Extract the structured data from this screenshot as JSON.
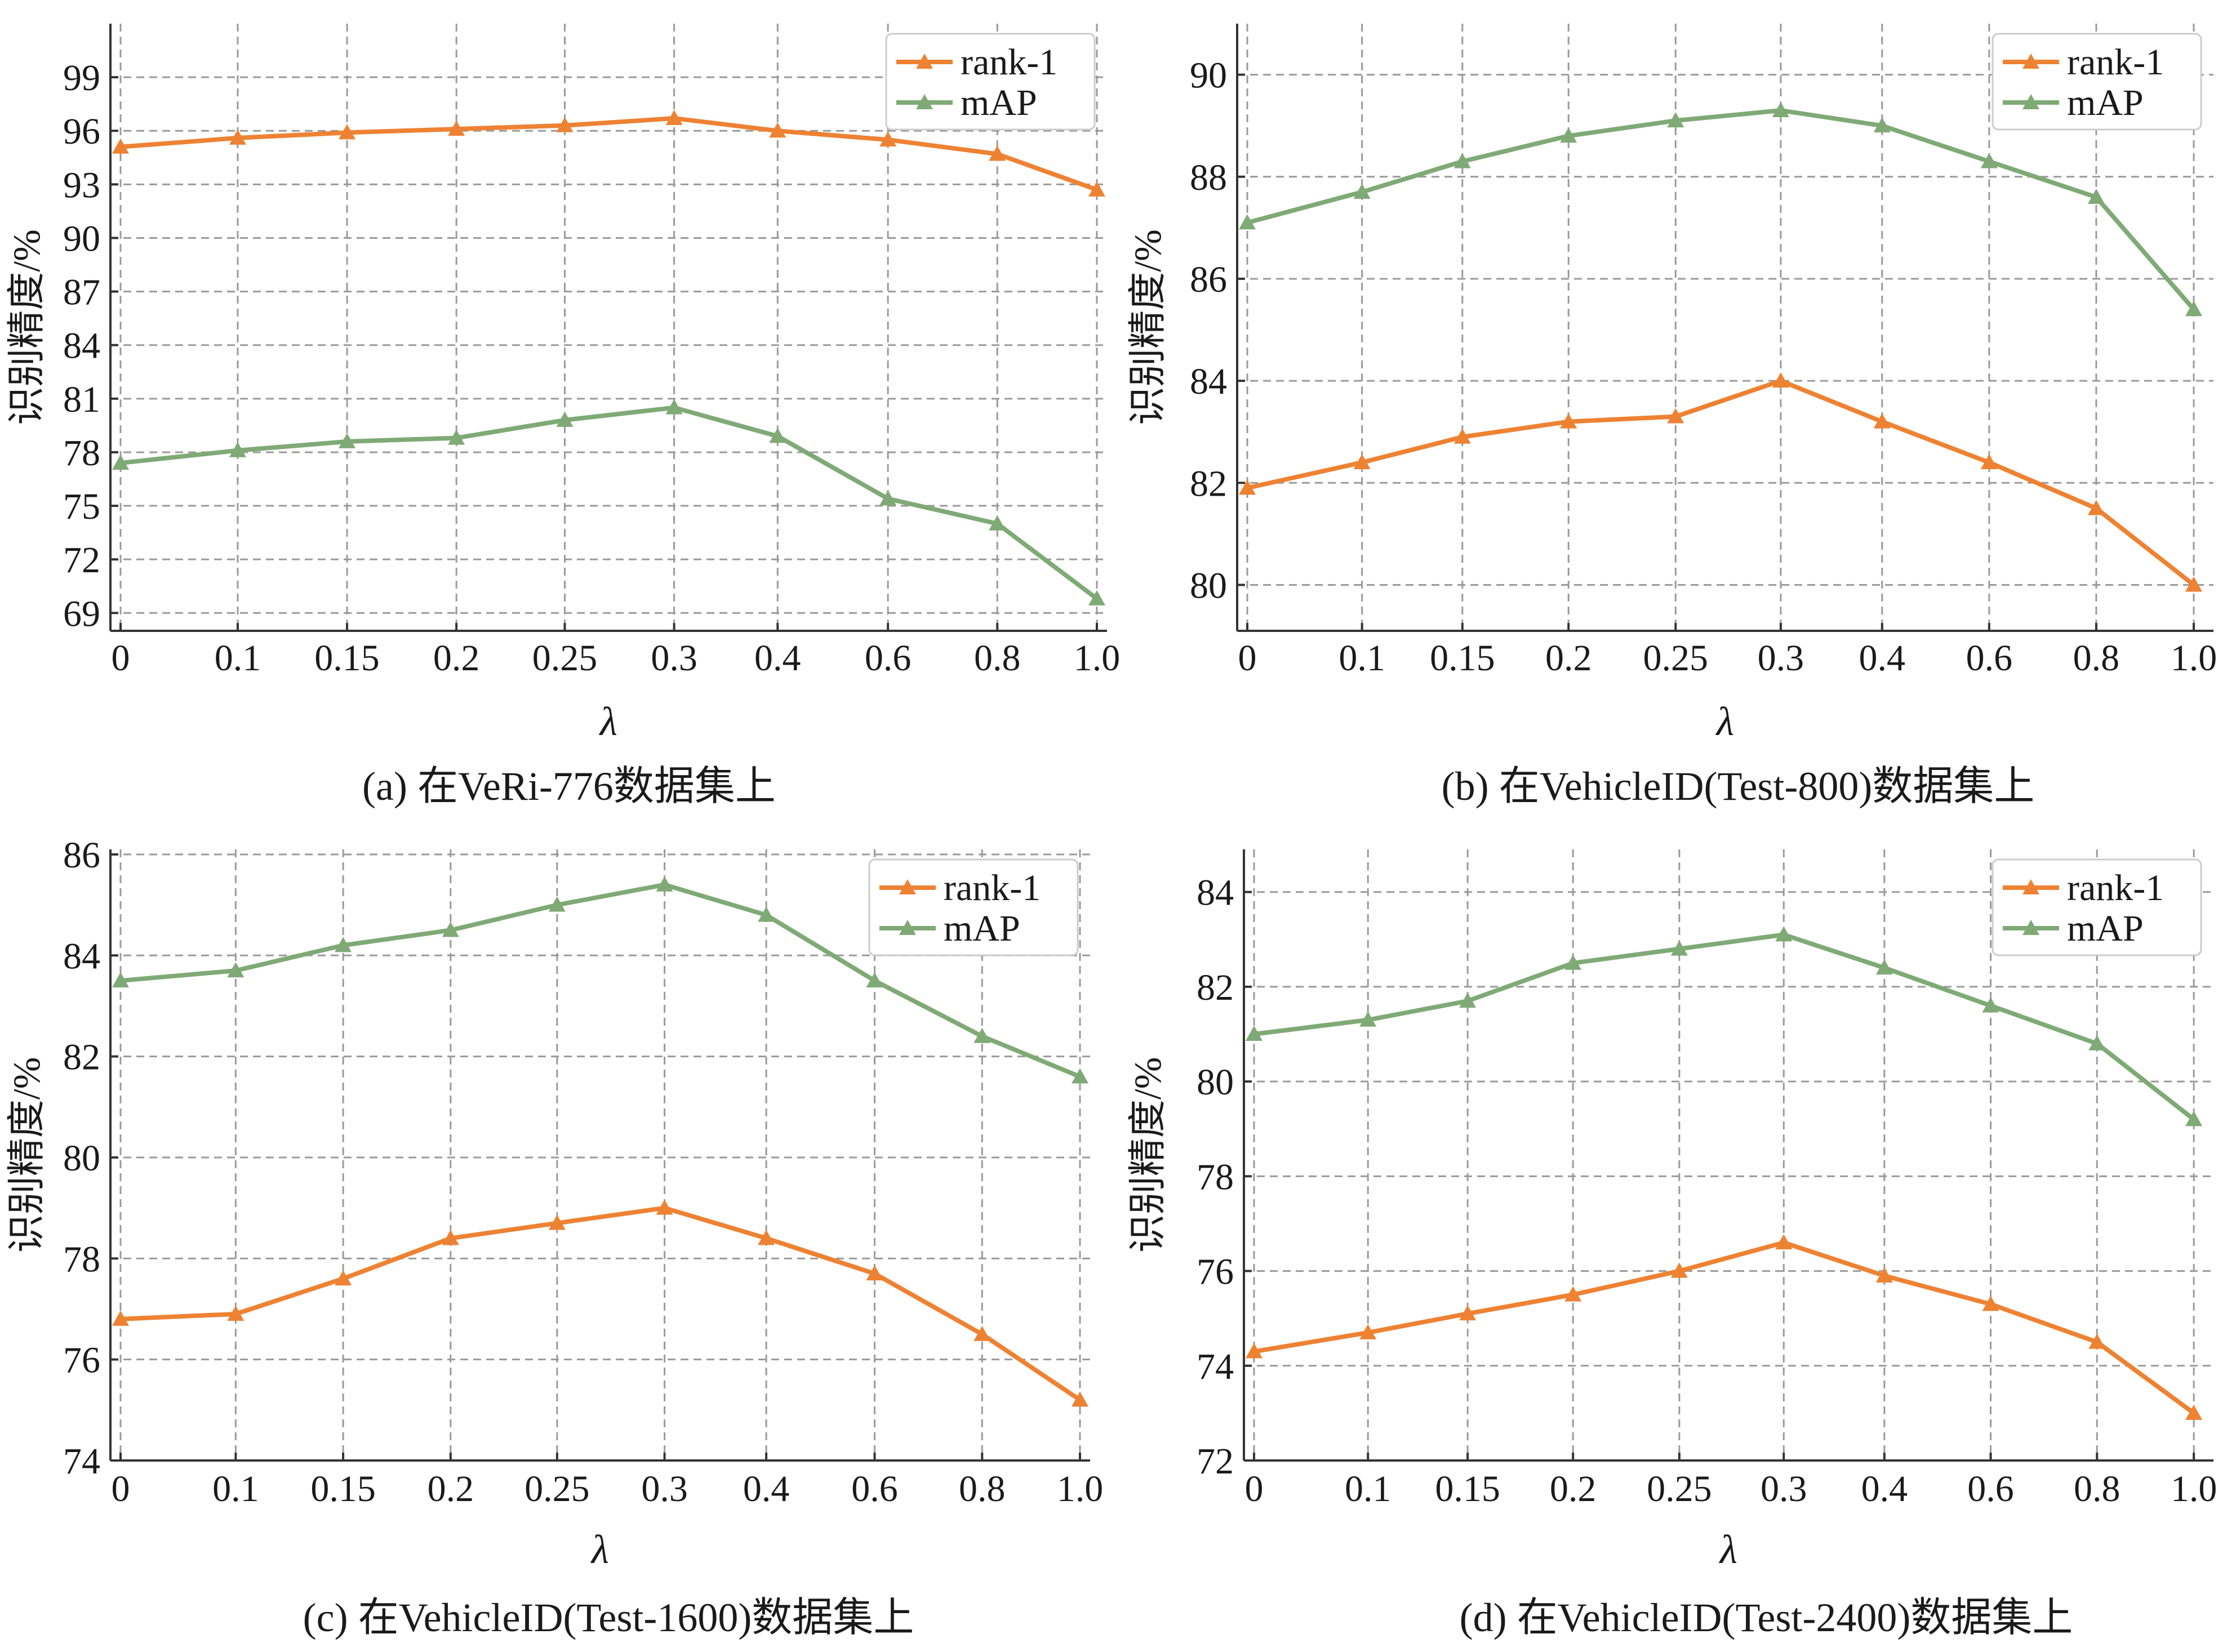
{
  "colors": {
    "rank1": "#ee8233",
    "map": "#7faa76",
    "grid": "#9a9a9a",
    "axis": "#333333",
    "background": "#ffffff"
  },
  "chart_data": [
    {
      "type": "line",
      "panel": "a",
      "caption": "(a) 在VeRi-776数据集上",
      "categories": [
        "0",
        "0.1",
        "0.15",
        "0.2",
        "0.25",
        "0.3",
        "0.4",
        "0.6",
        "0.8",
        "1.0"
      ],
      "xlabel": "λ",
      "ylabel": "识别精度/%",
      "ylim": [
        68,
        102
      ],
      "yticks": [
        69,
        72,
        75,
        78,
        81,
        84,
        87,
        90,
        93,
        96,
        99
      ],
      "grid": true,
      "legend_position": "top-right",
      "series": [
        {
          "name": "rank-1",
          "color_key": "rank1",
          "values": [
            95.1,
            95.6,
            95.9,
            96.1,
            96.3,
            96.7,
            96.0,
            95.5,
            94.7,
            92.7
          ]
        },
        {
          "name": "mAP",
          "color_key": "map",
          "values": [
            77.4,
            78.1,
            78.6,
            78.8,
            79.8,
            80.5,
            78.9,
            75.4,
            74.0,
            69.8
          ]
        }
      ]
    },
    {
      "type": "line",
      "panel": "b",
      "caption": "(b) 在VehicleID(Test-800)数据集上",
      "categories": [
        "0",
        "0.1",
        "0.15",
        "0.2",
        "0.25",
        "0.3",
        "0.4",
        "0.6",
        "0.8",
        "1.0"
      ],
      "xlabel": "λ",
      "ylabel": "识别精度/%",
      "ylim": [
        79.1,
        91.0
      ],
      "yticks": [
        80,
        82,
        84,
        86,
        88,
        90
      ],
      "grid": true,
      "legend_position": "top-right",
      "series": [
        {
          "name": "rank-1",
          "color_key": "rank1",
          "values": [
            81.9,
            82.4,
            82.9,
            83.2,
            83.3,
            84.0,
            83.2,
            82.4,
            81.5,
            80.0
          ]
        },
        {
          "name": "mAP",
          "color_key": "map",
          "values": [
            87.1,
            87.7,
            88.3,
            88.8,
            89.1,
            89.3,
            89.0,
            88.3,
            87.6,
            85.4
          ]
        }
      ]
    },
    {
      "type": "line",
      "panel": "c",
      "caption": "(c) 在VehicleID(Test-1600)数据集上",
      "categories": [
        "0",
        "0.1",
        "0.15",
        "0.2",
        "0.25",
        "0.3",
        "0.4",
        "0.6",
        "0.8",
        "1.0"
      ],
      "xlabel": "λ",
      "ylabel": "识别精度/%",
      "ylim": [
        74,
        86.1
      ],
      "yticks": [
        74,
        76,
        78,
        80,
        82,
        84,
        86
      ],
      "grid": true,
      "legend_position": "top-right",
      "series": [
        {
          "name": "rank-1",
          "color_key": "rank1",
          "values": [
            76.8,
            76.9,
            77.6,
            78.4,
            78.7,
            79.0,
            78.4,
            77.7,
            76.5,
            75.2
          ]
        },
        {
          "name": "mAP",
          "color_key": "map",
          "values": [
            83.5,
            83.7,
            84.2,
            84.5,
            85.0,
            85.4,
            84.8,
            83.5,
            82.4,
            81.6
          ]
        }
      ]
    },
    {
      "type": "line",
      "panel": "d",
      "caption": "(d) 在VehicleID(Test-2400)数据集上",
      "categories": [
        "0",
        "0.1",
        "0.15",
        "0.2",
        "0.25",
        "0.3",
        "0.4",
        "0.6",
        "0.8",
        "1.0"
      ],
      "xlabel": "λ",
      "ylabel": "识别精度/%",
      "ylim": [
        72,
        84.9
      ],
      "yticks": [
        72,
        74,
        76,
        78,
        80,
        82,
        84
      ],
      "grid": true,
      "legend_position": "top-right",
      "series": [
        {
          "name": "rank-1",
          "color_key": "rank1",
          "values": [
            74.3,
            74.7,
            75.1,
            75.5,
            76.0,
            76.6,
            75.9,
            75.3,
            74.5,
            73.0
          ]
        },
        {
          "name": "mAP",
          "color_key": "map",
          "values": [
            81.0,
            81.3,
            81.7,
            82.5,
            82.8,
            83.1,
            82.4,
            81.6,
            80.8,
            79.2
          ]
        }
      ]
    }
  ]
}
